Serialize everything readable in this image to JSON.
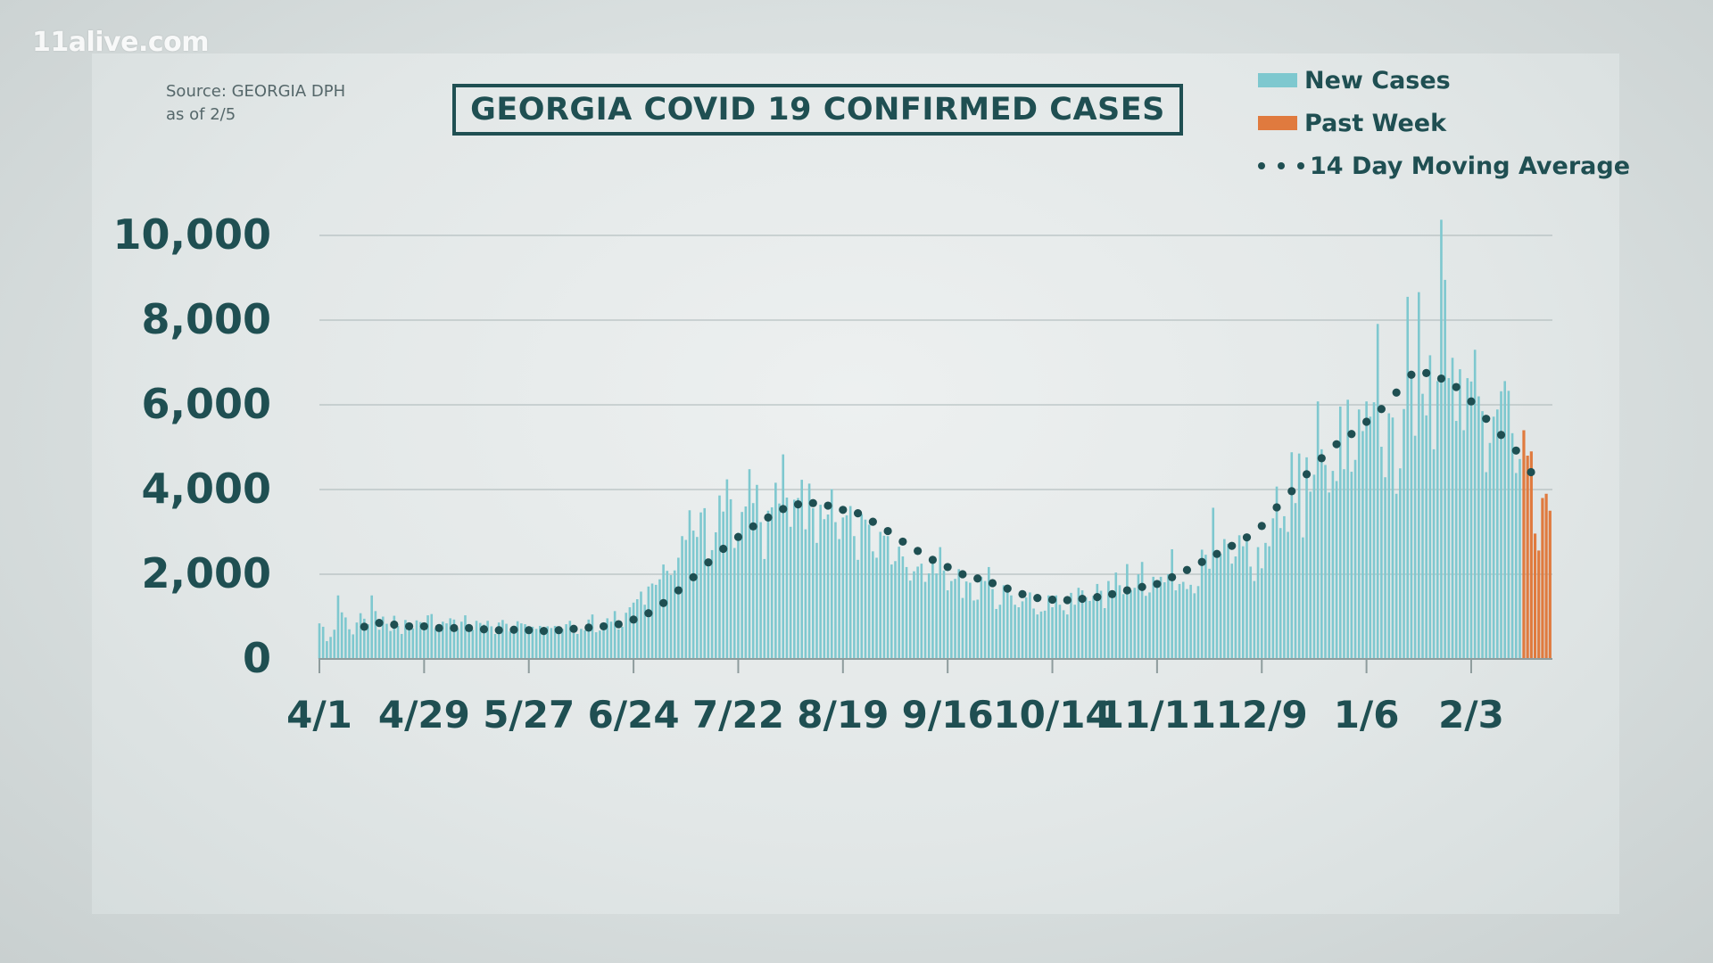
{
  "watermark": "11alive.com",
  "source": {
    "line1": "Source: GEORGIA DPH",
    "line2": "as of 2/5"
  },
  "legend": [
    {
      "label": "New Cases",
      "color": "#7ec8cf"
    },
    {
      "label": "Past Week",
      "color": "#e07a3e"
    },
    {
      "label": "14 Day Moving Average",
      "color": "#1f4f52"
    }
  ],
  "chart_data": {
    "type": "bar",
    "title": "GEORGIA COVID 19 CONFIRMED CASES",
    "xlabel": "",
    "ylabel": "",
    "ylim": [
      0,
      10000
    ],
    "yticks": [
      0,
      2000,
      4000,
      6000,
      8000,
      10000
    ],
    "ytick_labels": [
      "0",
      "2,000",
      "4,000",
      "6,000",
      "8,000",
      "10,000"
    ],
    "xtick_labels": [
      "4/1",
      "4/29",
      "5/27",
      "6/24",
      "7/22",
      "8/19",
      "9/16",
      "10/14",
      "11/11",
      "12/9",
      "1/6",
      "2/3"
    ],
    "xtick_day_index": [
      0,
      28,
      56,
      84,
      112,
      140,
      168,
      196,
      224,
      252,
      280,
      308
    ],
    "series": [
      {
        "name": "New Cases",
        "color": "#7ec8cf",
        "start_date": "4/1",
        "values": [
          840,
          760,
          420,
          520,
          690,
          1500,
          1100,
          980,
          700,
          580,
          860,
          1080,
          950,
          820,
          1500,
          1130,
          690,
          1000,
          830,
          660,
          1020,
          780,
          590,
          920,
          860,
          720,
          910,
          870,
          820,
          1030,
          1060,
          710,
          640,
          880,
          840,
          960,
          930,
          710,
          880,
          1030,
          740,
          690,
          900,
          850,
          810,
          900,
          770,
          590,
          860,
          920,
          830,
          650,
          610,
          890,
          840,
          820,
          720,
          760,
          710,
          780,
          670,
          770,
          730,
          780,
          660,
          710,
          820,
          900,
          610,
          590,
          710,
          680,
          930,
          1050,
          630,
          670,
          800,
          960,
          880,
          1130,
          700,
          760,
          1090,
          1220,
          1330,
          1410,
          1590,
          1280,
          1710,
          1780,
          1750,
          1880,
          2230,
          2080,
          1980,
          2090,
          2390,
          2900,
          2810,
          3510,
          3030,
          2880,
          3460,
          3560,
          2300,
          2570,
          2990,
          3860,
          3480,
          4240,
          3770,
          2620,
          2980,
          3470,
          3600,
          4480,
          3680,
          4110,
          3230,
          2360,
          3500,
          3580,
          4160,
          3670,
          4830,
          3810,
          3120,
          3760,
          3800,
          4230,
          3060,
          4140,
          3560,
          2740,
          3640,
          3300,
          3410,
          4010,
          3230,
          2830,
          3340,
          3390,
          3610,
          2900,
          2340,
          3420,
          3290,
          3170,
          2540,
          2390,
          3000,
          2910,
          2900,
          2230,
          2310,
          2650,
          2420,
          2170,
          1850,
          2070,
          2180,
          2250,
          1820,
          2020,
          2300,
          2020,
          2640,
          2090,
          1620,
          1840,
          1890,
          2120,
          1440,
          1830,
          1800,
          1380,
          1400,
          1940,
          1840,
          2170,
          1650,
          1180,
          1280,
          1740,
          1640,
          1500,
          1280,
          1220,
          1360,
          1450,
          1570,
          1190,
          1050,
          1120,
          1140,
          1500,
          1220,
          1500,
          1280,
          1150,
          1050,
          1560,
          1280,
          1680,
          1620,
          1460,
          1370,
          1490,
          1770,
          1610,
          1200,
          1840,
          1620,
          2040,
          1740,
          1530,
          2240,
          1620,
          1680,
          2000,
          2290,
          1490,
          1570,
          1940,
          1750,
          1940,
          1810,
          2000,
          2590,
          1620,
          1770,
          1820,
          1650,
          1750,
          1550,
          1720,
          2580,
          2460,
          2130,
          3570,
          2410,
          2480,
          2830,
          2720,
          2250,
          2420,
          2920,
          2660,
          2860,
          2180,
          1840,
          2640,
          2140,
          2740,
          2660,
          3320,
          4070,
          3090,
          3370,
          3000,
          4880,
          3680,
          4850,
          2870,
          4760,
          3950,
          4350,
          6080,
          4950,
          4580,
          3930,
          4440,
          4200,
          5960,
          4480,
          6120,
          4420,
          4700,
          5890,
          5380,
          6080,
          5720,
          6060,
          7910,
          5010,
          4290,
          5800,
          5700,
          3900,
          4500,
          5900,
          8550,
          6790,
          5270,
          8660,
          6260,
          5750,
          7170,
          4950,
          6560,
          10370,
          8950,
          6630,
          7110,
          5620,
          6840,
          5400,
          6630,
          6550,
          7300,
          6200,
          5850,
          4410,
          5100,
          5720,
          5890,
          6320,
          6560,
          6330,
          5330,
          4390,
          4720
        ],
        "highlight": {
          "name": "Past Week",
          "color": "#e07a3e",
          "values": [
            5400,
            4800,
            4900,
            2960,
            2560,
            3800,
            3900,
            3500
          ]
        }
      },
      {
        "name": "14 Day Moving Average",
        "color": "#1f4f52",
        "style": "dotted",
        "points": [
          {
            "day": 12,
            "value": 760
          },
          {
            "day": 16,
            "value": 850
          },
          {
            "day": 20,
            "value": 810
          },
          {
            "day": 24,
            "value": 770
          },
          {
            "day": 28,
            "value": 770
          },
          {
            "day": 32,
            "value": 730
          },
          {
            "day": 36,
            "value": 730
          },
          {
            "day": 40,
            "value": 730
          },
          {
            "day": 44,
            "value": 700
          },
          {
            "day": 48,
            "value": 680
          },
          {
            "day": 52,
            "value": 690
          },
          {
            "day": 56,
            "value": 680
          },
          {
            "day": 60,
            "value": 660
          },
          {
            "day": 64,
            "value": 680
          },
          {
            "day": 68,
            "value": 710
          },
          {
            "day": 72,
            "value": 740
          },
          {
            "day": 76,
            "value": 770
          },
          {
            "day": 80,
            "value": 820
          },
          {
            "day": 84,
            "value": 930
          },
          {
            "day": 88,
            "value": 1080
          },
          {
            "day": 92,
            "value": 1320
          },
          {
            "day": 96,
            "value": 1620
          },
          {
            "day": 100,
            "value": 1930
          },
          {
            "day": 104,
            "value": 2280
          },
          {
            "day": 108,
            "value": 2600
          },
          {
            "day": 112,
            "value": 2880
          },
          {
            "day": 116,
            "value": 3130
          },
          {
            "day": 120,
            "value": 3340
          },
          {
            "day": 124,
            "value": 3540
          },
          {
            "day": 128,
            "value": 3650
          },
          {
            "day": 132,
            "value": 3680
          },
          {
            "day": 136,
            "value": 3620
          },
          {
            "day": 140,
            "value": 3520
          },
          {
            "day": 144,
            "value": 3440
          },
          {
            "day": 148,
            "value": 3240
          },
          {
            "day": 152,
            "value": 3020
          },
          {
            "day": 156,
            "value": 2770
          },
          {
            "day": 160,
            "value": 2550
          },
          {
            "day": 164,
            "value": 2340
          },
          {
            "day": 168,
            "value": 2170
          },
          {
            "day": 172,
            "value": 2000
          },
          {
            "day": 176,
            "value": 1900
          },
          {
            "day": 180,
            "value": 1790
          },
          {
            "day": 184,
            "value": 1660
          },
          {
            "day": 188,
            "value": 1530
          },
          {
            "day": 192,
            "value": 1440
          },
          {
            "day": 196,
            "value": 1400
          },
          {
            "day": 200,
            "value": 1390
          },
          {
            "day": 204,
            "value": 1420
          },
          {
            "day": 208,
            "value": 1460
          },
          {
            "day": 212,
            "value": 1530
          },
          {
            "day": 216,
            "value": 1620
          },
          {
            "day": 220,
            "value": 1700
          },
          {
            "day": 224,
            "value": 1770
          },
          {
            "day": 228,
            "value": 1930
          },
          {
            "day": 232,
            "value": 2100
          },
          {
            "day": 236,
            "value": 2290
          },
          {
            "day": 240,
            "value": 2480
          },
          {
            "day": 244,
            "value": 2670
          },
          {
            "day": 248,
            "value": 2870
          },
          {
            "day": 252,
            "value": 3140
          },
          {
            "day": 256,
            "value": 3580
          },
          {
            "day": 260,
            "value": 3960
          },
          {
            "day": 264,
            "value": 4360
          },
          {
            "day": 268,
            "value": 4740
          },
          {
            "day": 272,
            "value": 5070
          },
          {
            "day": 276,
            "value": 5310
          },
          {
            "day": 280,
            "value": 5600
          },
          {
            "day": 284,
            "value": 5900
          },
          {
            "day": 288,
            "value": 6290
          },
          {
            "day": 292,
            "value": 6710
          },
          {
            "day": 296,
            "value": 6750
          },
          {
            "day": 300,
            "value": 6620
          },
          {
            "day": 304,
            "value": 6420
          },
          {
            "day": 308,
            "value": 6080
          },
          {
            "day": 312,
            "value": 5670
          },
          {
            "day": 316,
            "value": 5290
          },
          {
            "day": 320,
            "value": 4920
          },
          {
            "day": 324,
            "value": 4410
          }
        ]
      }
    ]
  }
}
